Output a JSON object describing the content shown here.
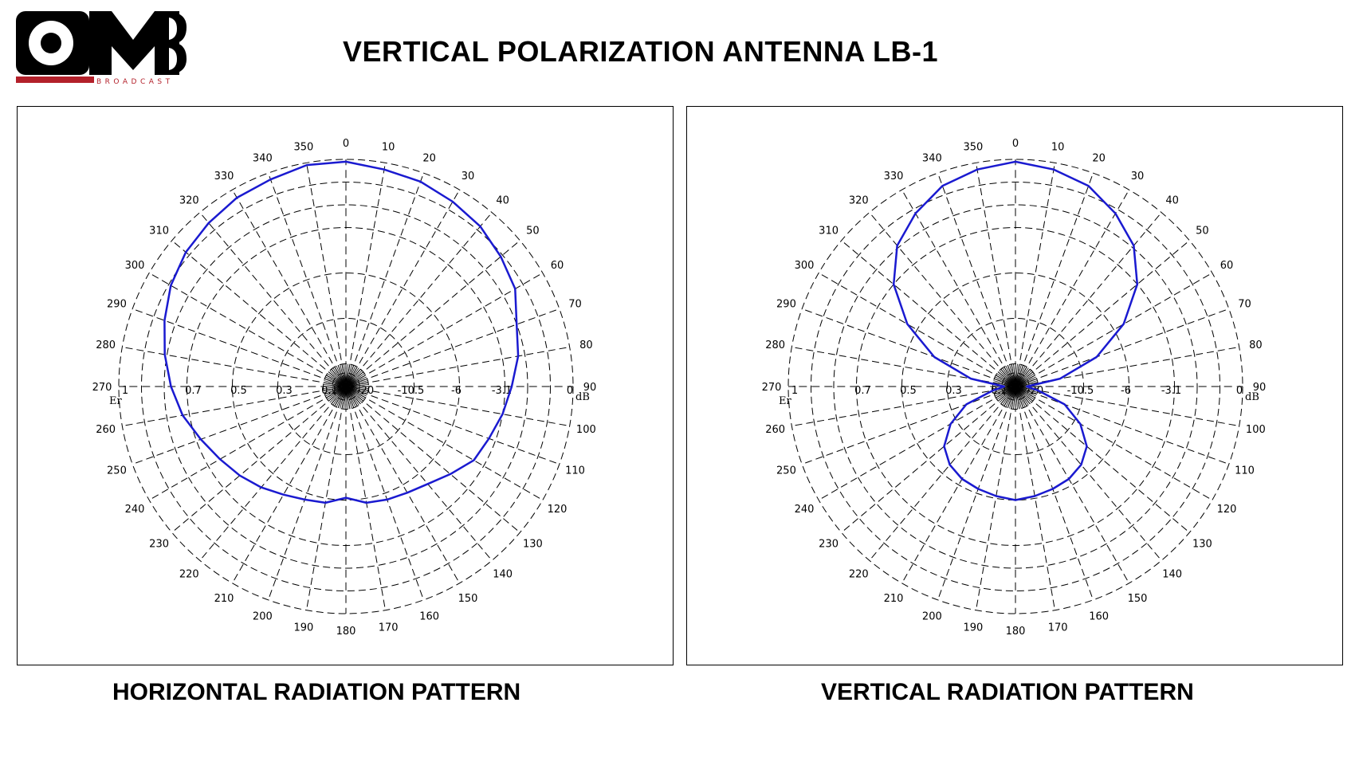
{
  "logo": {
    "letters": "OMB",
    "subtitle": "BROADCAST",
    "accent_color": "#b3202a"
  },
  "page_title": "VERTICAL POLARIZATION ANTENNA  LB-1",
  "curve_color": "#1a1ad0",
  "chart_data": [
    {
      "type": "polar",
      "caption": "HORIZONTAL RADIATION PATTERN",
      "angle_labels": [
        "0",
        "10",
        "20",
        "30",
        "40",
        "50",
        "60",
        "70",
        "80",
        "90",
        "100",
        "110",
        "120",
        "130",
        "140",
        "150",
        "160",
        "170",
        "180",
        "190",
        "200",
        "210",
        "220",
        "230",
        "240",
        "250",
        "260",
        "270",
        "280",
        "290",
        "300",
        "310",
        "320",
        "330",
        "340",
        "350"
      ],
      "scale_left_label": "Er",
      "scale_left": [
        "1",
        "0.7",
        "0.5",
        "0.3",
        "0.1"
      ],
      "scale_right_label": "dB",
      "scale_right": [
        "-20",
        "-10.5",
        "-6",
        "-3.1",
        "0"
      ],
      "angles_deg": [
        0,
        10,
        20,
        30,
        40,
        50,
        60,
        70,
        80,
        90,
        100,
        110,
        120,
        130,
        140,
        150,
        160,
        170,
        180,
        190,
        200,
        210,
        220,
        230,
        240,
        250,
        260,
        270,
        280,
        290,
        300,
        310,
        320,
        330,
        340,
        350
      ],
      "er_values": [
        0.99,
        0.97,
        0.96,
        0.94,
        0.92,
        0.89,
        0.86,
        0.8,
        0.77,
        0.73,
        0.7,
        0.67,
        0.65,
        0.6,
        0.56,
        0.54,
        0.53,
        0.52,
        0.49,
        0.52,
        0.53,
        0.55,
        0.58,
        0.61,
        0.64,
        0.68,
        0.73,
        0.77,
        0.81,
        0.85,
        0.89,
        0.92,
        0.94,
        0.96,
        0.97,
        0.99
      ]
    },
    {
      "type": "polar",
      "caption": "VERTICAL RADIATION PATTERN",
      "angle_labels": [
        "0",
        "10",
        "20",
        "30",
        "40",
        "50",
        "60",
        "70",
        "80",
        "90",
        "100",
        "110",
        "120",
        "130",
        "140",
        "150",
        "160",
        "170",
        "180",
        "190",
        "200",
        "210",
        "220",
        "230",
        "240",
        "250",
        "260",
        "270",
        "280",
        "290",
        "300",
        "310",
        "320",
        "330",
        "340",
        "350"
      ],
      "scale_left_label": "Er",
      "scale_left": [
        "1",
        "0.7",
        "0.5",
        "0.3",
        "0.1"
      ],
      "scale_right_label": "dB",
      "scale_right": [
        "-20",
        "-10.5",
        "-6",
        "-3.1",
        "0"
      ],
      "angles_deg": [
        0,
        10,
        20,
        30,
        40,
        50,
        60,
        70,
        80,
        90,
        100,
        110,
        120,
        130,
        140,
        150,
        160,
        170,
        180,
        190,
        200,
        210,
        220,
        230,
        240,
        250,
        260,
        270,
        280,
        290,
        300,
        310,
        320,
        330,
        340,
        350
      ],
      "er_values": [
        0.99,
        0.97,
        0.94,
        0.88,
        0.81,
        0.7,
        0.55,
        0.38,
        0.2,
        0.05,
        0.1,
        0.23,
        0.33,
        0.41,
        0.45,
        0.47,
        0.48,
        0.49,
        0.5,
        0.49,
        0.48,
        0.47,
        0.45,
        0.41,
        0.33,
        0.23,
        0.1,
        0.05,
        0.2,
        0.38,
        0.55,
        0.7,
        0.81,
        0.88,
        0.94,
        0.97
      ]
    }
  ]
}
